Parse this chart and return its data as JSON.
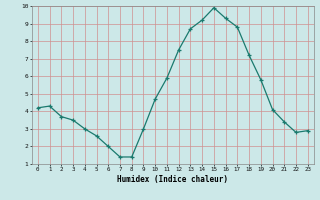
{
  "x": [
    0,
    1,
    2,
    3,
    4,
    5,
    6,
    7,
    8,
    9,
    10,
    11,
    12,
    13,
    14,
    15,
    16,
    17,
    18,
    19,
    20,
    21,
    22,
    23
  ],
  "y": [
    4.2,
    4.3,
    3.7,
    3.5,
    3.0,
    2.6,
    2.0,
    1.4,
    1.4,
    3.0,
    4.7,
    5.9,
    7.5,
    8.7,
    9.2,
    9.9,
    9.3,
    8.8,
    7.2,
    5.8,
    4.1,
    3.4,
    2.8,
    2.9
  ],
  "xlabel": "Humidex (Indice chaleur)",
  "line_color": "#1a7a6e",
  "marker_color": "#1a7a6e",
  "bg_color": "#cce8e8",
  "grid_color": "#d09090",
  "xlim": [
    -0.5,
    23.5
  ],
  "ylim": [
    1,
    10
  ],
  "yticks": [
    1,
    2,
    3,
    4,
    5,
    6,
    7,
    8,
    9,
    10
  ],
  "xticks": [
    0,
    1,
    2,
    3,
    4,
    5,
    6,
    7,
    8,
    9,
    10,
    11,
    12,
    13,
    14,
    15,
    16,
    17,
    18,
    19,
    20,
    21,
    22,
    23
  ],
  "xtick_labels": [
    "0",
    "1",
    "2",
    "3",
    "4",
    "5",
    "6",
    "7",
    "8",
    "9",
    "10",
    "11",
    "12",
    "13",
    "14",
    "15",
    "16",
    "17",
    "18",
    "19",
    "20",
    "21",
    "22",
    "23"
  ]
}
